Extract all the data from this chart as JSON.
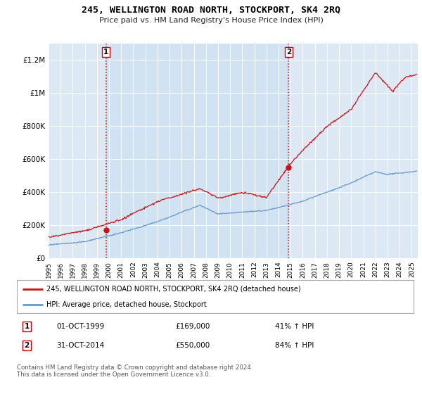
{
  "title": "245, WELLINGTON ROAD NORTH, STOCKPORT, SK4 2RQ",
  "subtitle": "Price paid vs. HM Land Registry's House Price Index (HPI)",
  "background_color": "#ffffff",
  "plot_bg_color": "#dce9f5",
  "sale1_date_num": 1999.75,
  "sale1_price": 169000,
  "sale1_label": "1",
  "sale2_date_num": 2014.833,
  "sale2_price": 550000,
  "sale2_label": "2",
  "vline_color": "#cc0000",
  "red_line_color": "#cc1111",
  "blue_line_color": "#6699cc",
  "legend_label_red": "245, WELLINGTON ROAD NORTH, STOCKPORT, SK4 2RQ (detached house)",
  "legend_label_blue": "HPI: Average price, detached house, Stockport",
  "annotation1_date": "01-OCT-1999",
  "annotation1_price": "£169,000",
  "annotation1_pct": "41% ↑ HPI",
  "annotation2_date": "31-OCT-2014",
  "annotation2_price": "£550,000",
  "annotation2_pct": "84% ↑ HPI",
  "footer": "Contains HM Land Registry data © Crown copyright and database right 2024.\nThis data is licensed under the Open Government Licence v3.0.",
  "ylim": [
    0,
    1300000
  ],
  "xlim_start": 1995.0,
  "xlim_end": 2025.5,
  "yticks": [
    0,
    200000,
    400000,
    600000,
    800000,
    1000000,
    1200000
  ],
  "ylabels": [
    "£0",
    "£200K",
    "£400K",
    "£600K",
    "£800K",
    "£1M",
    "£1.2M"
  ]
}
